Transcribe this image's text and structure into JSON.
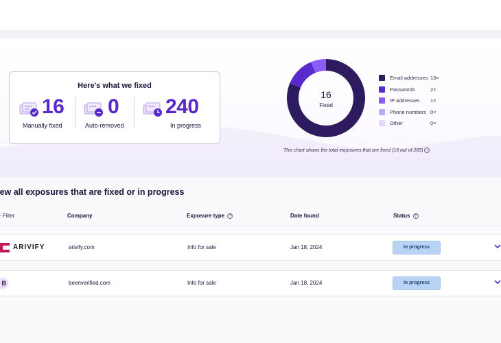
{
  "summary": {
    "title": "Here's what we fixed",
    "stats": [
      {
        "value": "16",
        "label": "Manually fixed",
        "icon": "manually-fixed-icon"
      },
      {
        "value": "0",
        "label": "Auto-removed",
        "icon": "auto-removed-icon"
      },
      {
        "value": "240",
        "label": "In progress",
        "icon": "in-progress-icon"
      }
    ]
  },
  "donut": {
    "center_value": "16",
    "center_label": "Fixed",
    "note": "This chart shows the total exposures that are fixed (16 out of 265)"
  },
  "chart_data": {
    "type": "pie",
    "categories": [
      "Email addresses",
      "Passwords",
      "IP addresses",
      "Phone numbers",
      "Other"
    ],
    "values": [
      13,
      2,
      1,
      0,
      0
    ],
    "counts": [
      "13×",
      "2×",
      "1×",
      "0×",
      "0×"
    ],
    "colors": [
      "#2e1a5e",
      "#592acb",
      "#8b5cf6",
      "#c4a8f5",
      "#e3d5fb"
    ]
  },
  "exposures": {
    "title": "View all exposures that are fixed or in progress",
    "filter_label": "Filter",
    "columns": {
      "company": "Company",
      "exposure_type": "Exposure type",
      "date_found": "Date found",
      "status": "Status"
    },
    "rows": [
      {
        "logo_text": "ARIVIFY",
        "company": "arivify.com",
        "exposure_type": "Info for sale",
        "date_found": "Jan 18, 2024",
        "status": "In progress"
      },
      {
        "logo_text": "B",
        "company": "beenverified.com",
        "exposure_type": "Info for sale",
        "date_found": "Jan 18, 2024",
        "status": "In progress"
      }
    ]
  }
}
